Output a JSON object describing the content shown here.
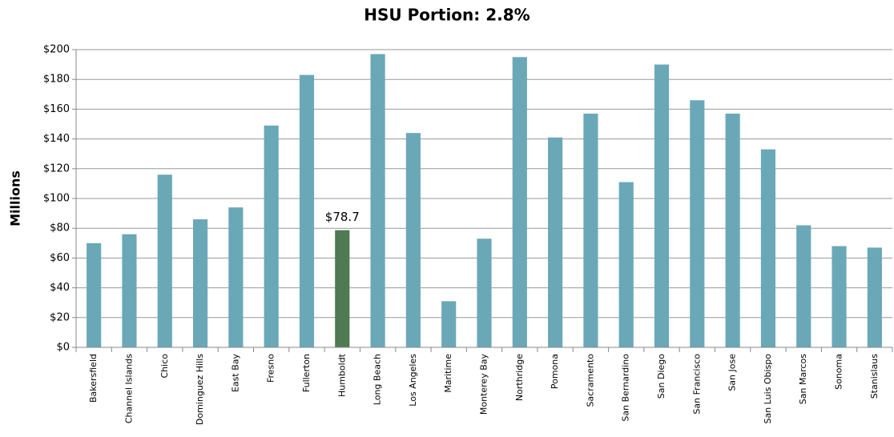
{
  "chart_data": {
    "type": "bar",
    "title": "HSU Portion: 2.8%",
    "ylabel": "Millions",
    "categories": [
      "Bakersfield",
      "Channel Islands",
      "Chico",
      "Dominguez Hills",
      "East Bay",
      "Fresno",
      "Fullerton",
      "Humboldt",
      "Long Beach",
      "Los Angeles",
      "Maritime",
      "Monterey Bay",
      "Northridge",
      "Pomona",
      "Sacramento",
      "San Bernardino",
      "San Diego",
      "San Francisco",
      "San Jose",
      "San Luis Obispo",
      "San Marcos",
      "Sonoma",
      "Stanislaus"
    ],
    "values": [
      70,
      76,
      116,
      86,
      94,
      149,
      183,
      78.7,
      197,
      144,
      31,
      73,
      195,
      141,
      157,
      111,
      190,
      166,
      157,
      133,
      82,
      68,
      67
    ],
    "value_labels": [
      null,
      null,
      null,
      null,
      null,
      null,
      null,
      "$78.7",
      null,
      null,
      null,
      null,
      null,
      null,
      null,
      null,
      null,
      null,
      null,
      null,
      null,
      null,
      null
    ],
    "colors": [
      "#6aa8b8",
      "#6aa8b8",
      "#6aa8b8",
      "#6aa8b8",
      "#6aa8b8",
      "#6aa8b8",
      "#6aa8b8",
      "#4f7a52",
      "#6aa8b8",
      "#6aa8b8",
      "#6aa8b8",
      "#6aa8b8",
      "#6aa8b8",
      "#6aa8b8",
      "#6aa8b8",
      "#6aa8b8",
      "#6aa8b8",
      "#6aa8b8",
      "#6aa8b8",
      "#6aa8b8",
      "#6aa8b8",
      "#6aa8b8",
      "#6aa8b8"
    ],
    "ylim": [
      0,
      200
    ],
    "yticks": [
      {
        "value": 0,
        "label": "$0"
      },
      {
        "value": 20,
        "label": "$20"
      },
      {
        "value": 40,
        "label": "$40"
      },
      {
        "value": 60,
        "label": "$60"
      },
      {
        "value": 80,
        "label": "$80"
      },
      {
        "value": 100,
        "label": "$100"
      },
      {
        "value": 120,
        "label": "$120"
      },
      {
        "value": 140,
        "label": "$140"
      },
      {
        "value": 160,
        "label": "$160"
      },
      {
        "value": 180,
        "label": "$180"
      },
      {
        "value": 200,
        "label": "$200"
      }
    ],
    "grid": true
  }
}
